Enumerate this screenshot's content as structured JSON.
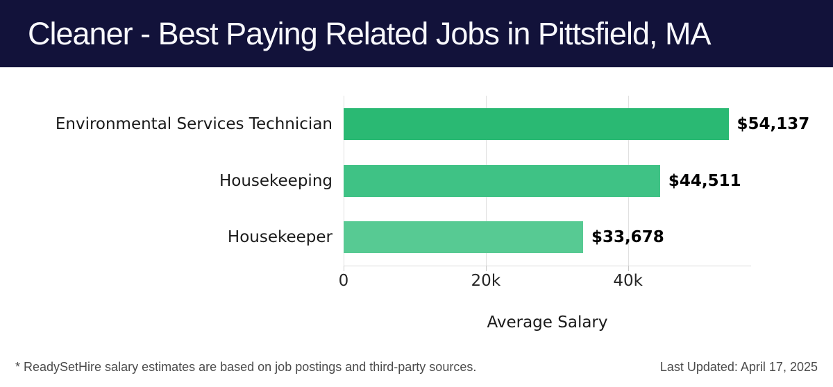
{
  "header": {
    "title": "Cleaner - Best Paying Related Jobs in Pittsfield, MA",
    "bg_color": "#12123a",
    "text_color": "#f8f8fc"
  },
  "chart_data": {
    "type": "bar",
    "orientation": "horizontal",
    "title": "Cleaner - Best Paying Related Jobs in Pittsfield, MA",
    "categories": [
      "Environmental Services Technician",
      "Housekeeping",
      "Housekeeper"
    ],
    "values": [
      54137,
      44511,
      33678
    ],
    "value_labels": [
      "$54,137",
      "$44,511",
      "$33,678"
    ],
    "bar_colors": [
      "#2ab973",
      "#3fc285",
      "#57ca93"
    ],
    "xlabel": "Average Salary",
    "ylabel": "",
    "xlim": [
      0,
      57310
    ],
    "x_ticks": [
      {
        "value": 0,
        "label": "0"
      },
      {
        "value": 20000,
        "label": "20k"
      },
      {
        "value": 40000,
        "label": "40k"
      }
    ],
    "grid": "vertical",
    "legend": null,
    "grid_color": "#e0e0e0",
    "axis_line_color": "#d9d9d9",
    "tick_color": "#c9c9c9"
  },
  "footer": {
    "disclaimer": "* ReadySetHire salary estimates are based on job postings and third-party sources.",
    "last_updated": "Last Updated: April 17, 2025"
  }
}
